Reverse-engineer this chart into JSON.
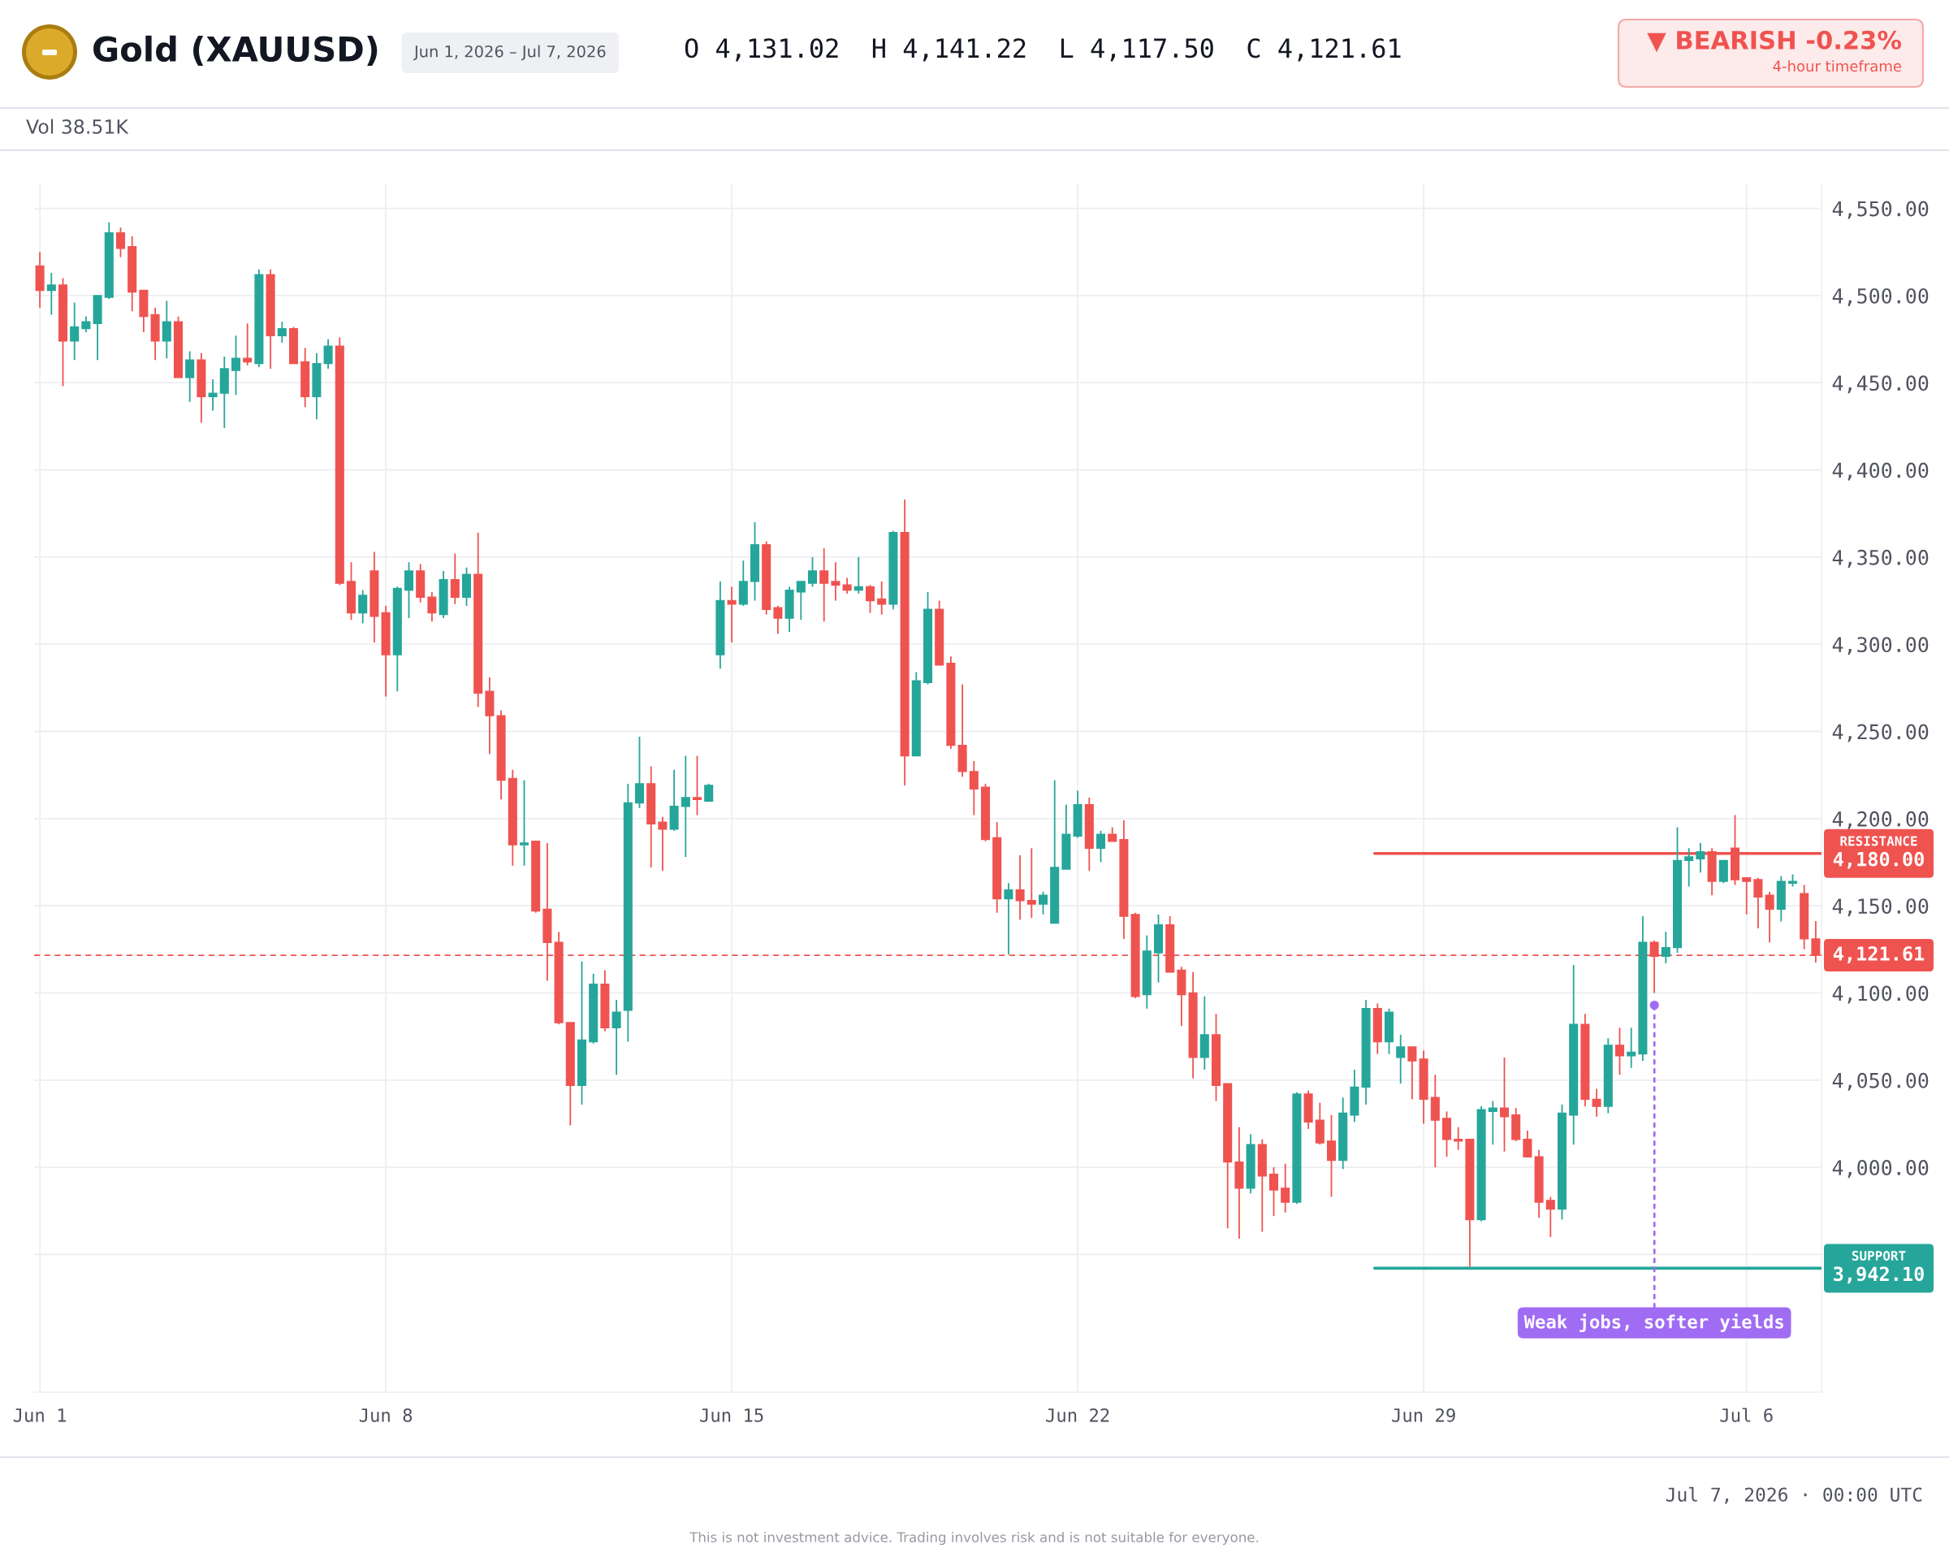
{
  "chart_data": {
    "type": "candlestick",
    "title": "Gold (XAUUSD)",
    "subtitle": "Jun 1, 2026 – Jul 7, 2026",
    "categories": [
      "Jun 1",
      null,
      null,
      null,
      null,
      null,
      null,
      null,
      null,
      null,
      null,
      null,
      null,
      null,
      null,
      null,
      null,
      null,
      null,
      null,
      null,
      null,
      null,
      null,
      null,
      null,
      null,
      null,
      null,
      null,
      "Jun 8",
      null,
      null,
      null,
      null,
      null,
      null,
      null,
      null,
      null,
      null,
      null,
      null,
      null,
      null,
      null,
      null,
      null,
      null,
      null,
      null,
      null,
      null,
      null,
      null,
      null,
      null,
      null,
      null,
      null,
      "Jun 15",
      null,
      null,
      null,
      null,
      null,
      null,
      null,
      null,
      null,
      null,
      null,
      null,
      null,
      null,
      null,
      null,
      null,
      null,
      null,
      null,
      null,
      null,
      null,
      null,
      null,
      null,
      null,
      null,
      null,
      "Jun 22",
      null,
      null,
      null,
      null,
      null,
      null,
      null,
      null,
      null,
      null,
      null,
      null,
      null,
      null,
      null,
      null,
      null,
      null,
      null,
      null,
      null,
      null,
      null,
      null,
      null,
      null,
      null,
      null,
      null,
      "Jun 29",
      null,
      null,
      null,
      null,
      null,
      null,
      null,
      null,
      null,
      null,
      null,
      null,
      null,
      null,
      null,
      null,
      null,
      null,
      null,
      null,
      null,
      null,
      null,
      null,
      null,
      null,
      null,
      "Jul 6",
      null,
      null,
      null,
      null,
      null,
      null
    ],
    "ohlc": [
      [
        4517,
        4525,
        4493,
        4503
      ],
      [
        4503,
        4513,
        4489,
        4506
      ],
      [
        4506,
        4510,
        4448,
        4474
      ],
      [
        4474,
        4496,
        4463,
        4482
      ],
      [
        4481,
        4488,
        4479,
        4485
      ],
      [
        4484,
        4500,
        4463,
        4500
      ],
      [
        4499,
        4542,
        4498,
        4536
      ],
      [
        4536,
        4539,
        4522,
        4527
      ],
      [
        4528,
        4534,
        4491,
        4502
      ],
      [
        4503,
        4503,
        4479,
        4488
      ],
      [
        4489,
        4493,
        4463,
        4474
      ],
      [
        4474,
        4497,
        4464,
        4485
      ],
      [
        4485,
        4488,
        4453,
        4453
      ],
      [
        4453,
        4468,
        4439,
        4463
      ],
      [
        4463,
        4467,
        4427,
        4442
      ],
      [
        4442,
        4452,
        4434,
        4444
      ],
      [
        4444,
        4465,
        4424,
        4458
      ],
      [
        4457,
        4477,
        4443,
        4464
      ],
      [
        4464,
        4484,
        4460,
        4462
      ],
      [
        4461,
        4515,
        4459,
        4512
      ],
      [
        4512,
        4515,
        4458,
        4477
      ],
      [
        4477,
        4485,
        4473,
        4481
      ],
      [
        4481,
        4482,
        4461,
        4461
      ],
      [
        4462,
        4470,
        4436,
        4442
      ],
      [
        4442,
        4467,
        4429,
        4461
      ],
      [
        4461,
        4475,
        4458,
        4471
      ],
      [
        4471,
        4476,
        4334,
        4335
      ],
      [
        4336,
        4347,
        4314,
        4318
      ],
      [
        4318,
        4331,
        4312,
        4328
      ],
      [
        4342,
        4353,
        4301,
        4316
      ],
      [
        4318,
        4322,
        4270,
        4294
      ],
      [
        4294,
        4333,
        4273,
        4332
      ],
      [
        4331,
        4347,
        4315,
        4342
      ],
      [
        4342,
        4346,
        4324,
        4327
      ],
      [
        4327,
        4330,
        4313,
        4318
      ],
      [
        4317,
        4342,
        4315,
        4337
      ],
      [
        4337,
        4352,
        4323,
        4327
      ],
      [
        4327,
        4344,
        4322,
        4340
      ],
      [
        4340,
        4364,
        4264,
        4272
      ],
      [
        4273,
        4281,
        4237,
        4259
      ],
      [
        4259,
        4262,
        4211,
        4222
      ],
      [
        4223,
        4228,
        4173,
        4185
      ],
      [
        4185,
        4222,
        4173,
        4186
      ],
      [
        4187,
        4187,
        4146,
        4147
      ],
      [
        4148,
        4186,
        4107,
        4129
      ],
      [
        4129,
        4135,
        4082,
        4083
      ],
      [
        4083,
        4083,
        4024,
        4047
      ],
      [
        4047,
        4118,
        4036,
        4073
      ],
      [
        4072,
        4111,
        4071,
        4105
      ],
      [
        4105,
        4113,
        4078,
        4080
      ],
      [
        4080,
        4096,
        4053,
        4089
      ],
      [
        4090,
        4220,
        4072,
        4209
      ],
      [
        4209,
        4247,
        4206,
        4220
      ],
      [
        4220,
        4230,
        4172,
        4197
      ],
      [
        4198,
        4201,
        4170,
        4194
      ],
      [
        4194,
        4228,
        4193,
        4207
      ],
      [
        4207,
        4236,
        4178,
        4212
      ],
      [
        4212,
        4236,
        4202,
        4211
      ],
      [
        4210,
        4220,
        4210,
        4219
      ],
      [
        4294,
        4336,
        4286,
        4325
      ],
      [
        4325,
        4333,
        4301,
        4323
      ],
      [
        4323,
        4348,
        4322,
        4336
      ],
      [
        4336,
        4370,
        4325,
        4357
      ],
      [
        4357,
        4359,
        4317,
        4320
      ],
      [
        4321,
        4322,
        4306,
        4315
      ],
      [
        4315,
        4333,
        4307,
        4331
      ],
      [
        4330,
        4336,
        4314,
        4336
      ],
      [
        4335,
        4350,
        4333,
        4342
      ],
      [
        4342,
        4355,
        4313,
        4335
      ],
      [
        4336,
        4347,
        4325,
        4334
      ],
      [
        4334,
        4338,
        4329,
        4331
      ],
      [
        4331,
        4350,
        4329,
        4333
      ],
      [
        4333,
        4334,
        4318,
        4325
      ],
      [
        4326,
        4336,
        4317,
        4323
      ],
      [
        4323,
        4365,
        4320,
        4364
      ],
      [
        4364,
        4383,
        4219,
        4236
      ],
      [
        4236,
        4284,
        4236,
        4279
      ],
      [
        4278,
        4330,
        4277,
        4320
      ],
      [
        4320,
        4325,
        4288,
        4288
      ],
      [
        4289,
        4293,
        4240,
        4242
      ],
      [
        4242,
        4277,
        4224,
        4227
      ],
      [
        4227,
        4233,
        4202,
        4217
      ],
      [
        4218,
        4220,
        4187,
        4188
      ],
      [
        4189,
        4198,
        4146,
        4154
      ],
      [
        4154,
        4163,
        4122,
        4159
      ],
      [
        4159,
        4179,
        4142,
        4153
      ],
      [
        4153,
        4183,
        4143,
        4151
      ],
      [
        4151,
        4158,
        4145,
        4156
      ],
      [
        4140,
        4222,
        4140,
        4172
      ],
      [
        4171,
        4208,
        4171,
        4191
      ],
      [
        4190,
        4216,
        4189,
        4208
      ],
      [
        4208,
        4212,
        4170,
        4183
      ],
      [
        4183,
        4193,
        4175,
        4191
      ],
      [
        4191,
        4195,
        4187,
        4187
      ],
      [
        4188,
        4199,
        4131,
        4144
      ],
      [
        4145,
        4146,
        4097,
        4098
      ],
      [
        4099,
        4133,
        4091,
        4124
      ],
      [
        4123,
        4145,
        4106,
        4139
      ],
      [
        4139,
        4144,
        4112,
        4112
      ],
      [
        4113,
        4115,
        4081,
        4099
      ],
      [
        4100,
        4112,
        4051,
        4063
      ],
      [
        4063,
        4098,
        4056,
        4076
      ],
      [
        4076,
        4088,
        4038,
        4047
      ],
      [
        4048,
        4048,
        3965,
        4003
      ],
      [
        4003,
        4023,
        3959,
        3988
      ],
      [
        3988,
        4019,
        3985,
        4013
      ],
      [
        4013,
        4016,
        3963,
        3995
      ],
      [
        3996,
        4000,
        3972,
        3987
      ],
      [
        3988,
        4002,
        3974,
        3980
      ],
      [
        3980,
        4043,
        3979,
        4042
      ],
      [
        4042,
        4044,
        4022,
        4026
      ],
      [
        4027,
        4037,
        4013,
        4014
      ],
      [
        4015,
        4030,
        3983,
        4004
      ],
      [
        4004,
        4040,
        3999,
        4031
      ],
      [
        4030,
        4056,
        4026,
        4046
      ],
      [
        4046,
        4096,
        4036,
        4091
      ],
      [
        4091,
        4094,
        4065,
        4072
      ],
      [
        4072,
        4091,
        4065,
        4089
      ],
      [
        4063,
        4076,
        4048,
        4069
      ],
      [
        4069,
        4069,
        4039,
        4061
      ],
      [
        4062,
        4067,
        4025,
        4039
      ],
      [
        4040,
        4053,
        4000,
        4027
      ],
      [
        4028,
        4032,
        4006,
        4016
      ],
      [
        4016,
        4023,
        4010,
        4015
      ],
      [
        4016,
        4016,
        3943,
        3970
      ],
      [
        3970,
        4035,
        3969,
        4033
      ],
      [
        4032,
        4038,
        4013,
        4034
      ],
      [
        4034,
        4063,
        4009,
        4029
      ],
      [
        4030,
        4034,
        4015,
        4016
      ],
      [
        4016,
        4021,
        4006,
        4006
      ],
      [
        4006,
        4010,
        3971,
        3980
      ],
      [
        3981,
        3983,
        3960,
        3976
      ],
      [
        3976,
        4036,
        3970,
        4031
      ],
      [
        4030,
        4116,
        4013,
        4082
      ],
      [
        4082,
        4088,
        4035,
        4039
      ],
      [
        4039,
        4045,
        4029,
        4035
      ],
      [
        4035,
        4074,
        4031,
        4070
      ],
      [
        4070,
        4080,
        4053,
        4064
      ],
      [
        4064,
        4080,
        4057,
        4066
      ],
      [
        4065,
        4144,
        4061,
        4129
      ],
      [
        4129,
        4130,
        4100,
        4121
      ],
      [
        4121,
        4135,
        4117,
        4126
      ],
      [
        4126,
        4195,
        4123,
        4176
      ],
      [
        4176,
        4183,
        4161,
        4178
      ],
      [
        4177,
        4186,
        4169,
        4181
      ],
      [
        4181,
        4183,
        4156,
        4164
      ],
      [
        4164,
        4176,
        4163,
        4176
      ],
      [
        4183,
        4202,
        4162,
        4165
      ],
      [
        4166,
        4166,
        4145,
        4164
      ],
      [
        4165,
        4166,
        4137,
        4155
      ],
      [
        4156,
        4158,
        4129,
        4148
      ],
      [
        4148,
        4167,
        4141,
        4164
      ],
      [
        4163,
        4168,
        4161,
        4164
      ],
      [
        4157,
        4162,
        4125,
        4131
      ],
      [
        4131.02,
        4141.22,
        4117.5,
        4121.61
      ]
    ],
    "colors": [
      "#ef5350",
      "#26a69a",
      "#ef5350",
      "#26a69a",
      "#26a69a",
      "#26a69a",
      "#26a69a",
      "#ef5350",
      "#ef5350",
      "#ef5350",
      "#ef5350",
      "#26a69a",
      "#ef5350",
      "#26a69a",
      "#ef5350",
      "#26a69a",
      "#26a69a",
      "#26a69a",
      "#ef5350",
      "#26a69a",
      "#ef5350",
      "#26a69a",
      "#ef5350",
      "#ef5350",
      "#26a69a",
      "#26a69a",
      "#ef5350",
      "#ef5350",
      "#26a69a",
      "#ef5350",
      "#ef5350",
      "#26a69a",
      "#26a69a",
      "#ef5350",
      "#ef5350",
      "#26a69a",
      "#ef5350",
      "#26a69a",
      "#ef5350",
      "#ef5350",
      "#ef5350",
      "#ef5350",
      "#26a69a",
      "#ef5350",
      "#ef5350",
      "#ef5350",
      "#ef5350",
      "#26a69a",
      "#26a69a",
      "#ef5350",
      "#26a69a",
      "#26a69a",
      "#26a69a",
      "#ef5350",
      "#ef5350",
      "#26a69a",
      "#26a69a",
      "#ef5350",
      "#26a69a",
      "#26a69a",
      "#ef5350",
      "#26a69a",
      "#26a69a",
      "#ef5350",
      "#ef5350",
      "#26a69a",
      "#26a69a",
      "#26a69a",
      "#ef5350",
      "#ef5350",
      "#ef5350",
      "#26a69a",
      "#ef5350",
      "#ef5350",
      "#26a69a",
      "#ef5350",
      "#26a69a",
      "#26a69a",
      "#ef5350",
      "#ef5350",
      "#ef5350",
      "#ef5350",
      "#ef5350",
      "#ef5350",
      "#26a69a",
      "#ef5350",
      "#ef5350",
      "#26a69a",
      "#26a69a",
      "#26a69a",
      "#26a69a",
      "#ef5350",
      "#26a69a",
      "#ef5350",
      "#ef5350",
      "#ef5350",
      "#26a69a",
      "#26a69a",
      "#ef5350",
      "#ef5350",
      "#ef5350",
      "#26a69a",
      "#ef5350",
      "#ef5350",
      "#ef5350",
      "#26a69a",
      "#ef5350",
      "#ef5350",
      "#ef5350",
      "#26a69a",
      "#ef5350",
      "#ef5350",
      "#ef5350",
      "#26a69a",
      "#26a69a",
      "#26a69a",
      "#ef5350",
      "#26a69a",
      "#26a69a",
      "#ef5350",
      "#ef5350",
      "#ef5350",
      "#ef5350",
      "#ef5350",
      "#ef5350",
      "#26a69a",
      "#26a69a",
      "#ef5350",
      "#ef5350",
      "#ef5350",
      "#ef5350",
      "#ef5350",
      "#26a69a",
      "#26a69a",
      "#ef5350",
      "#ef5350",
      "#26a69a",
      "#ef5350",
      "#26a69a",
      "#26a69a",
      "#ef5350",
      "#26a69a",
      "#26a69a",
      "#26a69a",
      "#26a69a",
      "#ef5350",
      "#26a69a",
      "#ef5350",
      "#ef5350",
      "#ef5350",
      "#ef5350",
      "#26a69a",
      "#26a69a",
      "#ef5350",
      "#ef5350"
    ],
    "ylim": [
      3871,
      4564
    ],
    "yticks": [
      {
        "value": 3950,
        "label": null
      },
      {
        "value": 4000,
        "label": "4,000.00"
      },
      {
        "value": 4050,
        "label": "4,050.00"
      },
      {
        "value": 4100,
        "label": "4,100.00"
      },
      {
        "value": 4150,
        "label": "4,150.00"
      },
      {
        "value": 4200,
        "label": "4,200.00"
      },
      {
        "value": 4250,
        "label": "4,250.00"
      },
      {
        "value": 4300,
        "label": "4,300.00"
      },
      {
        "value": 4350,
        "label": "4,350.00"
      },
      {
        "value": 4400,
        "label": "4,400.00"
      },
      {
        "value": 4450,
        "label": "4,450.00"
      },
      {
        "value": 4500,
        "label": "4,500.00"
      },
      {
        "value": 4550,
        "label": "4,550.00"
      }
    ],
    "grid": true,
    "ref_lines": [
      {
        "axis": "y",
        "value": 4180,
        "label": "RESISTANCE\n4,180.00",
        "color": "#ef5350",
        "line_style": "solid"
      },
      {
        "axis": "y",
        "value": 4121.61,
        "label": "4,121.61",
        "color": "#ef5350",
        "line_style": "dashed"
      },
      {
        "axis": "y",
        "value": 3942.1,
        "label": "SUPPORT\n3,942.10",
        "color": "#26a69a",
        "line_style": "solid"
      }
    ],
    "annotations": [
      "O 4,131.02 H 4,141.22 L 4,117.50 C 4,121.61",
      "▼ BEARISH -0.23%",
      "4-hour timeframe",
      "Vol 38.51K",
      {
        "text": "Weak jobs, softer yields",
        "y": 4093
      },
      "Jul 7, 2026 · 00:00 UTC",
      "This is not investment advice. Trading involves risk and is not suitable for everyone."
    ]
  }
}
